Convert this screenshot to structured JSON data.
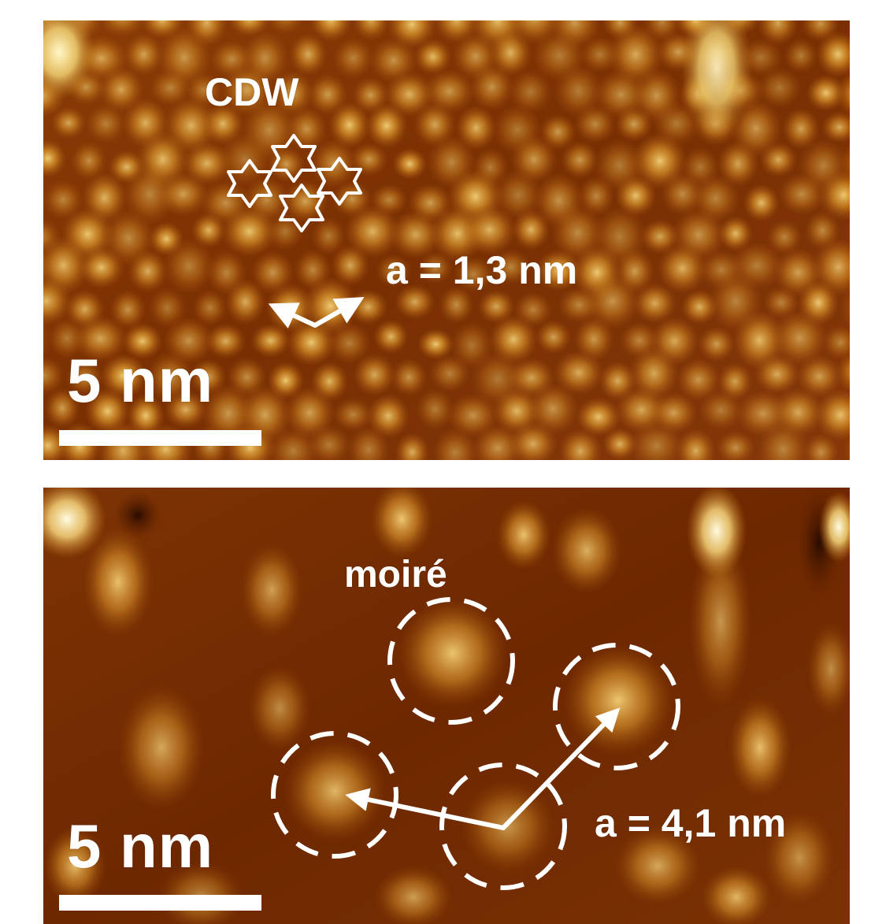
{
  "top_panel": {
    "label": "CDW",
    "lattice": "a = 1,3 nm",
    "scale": "5 nm"
  },
  "bottom_panel": {
    "label": "moiré",
    "lattice": "a = 4,1 nm",
    "scale": "5 nm"
  },
  "colors": {
    "background": "#7a2e00",
    "bright": "#f3c85a",
    "annotation": "#ffffff"
  }
}
